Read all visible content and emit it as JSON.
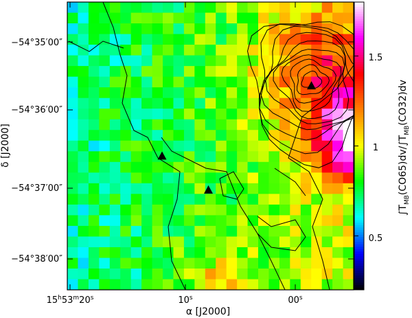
{
  "chart_data": {
    "type": "heatmap",
    "title": "",
    "xlabel": "α [J2000]",
    "ylabel": "δ [J2000]",
    "colorbar_label": "∫T_MB(CO65)dv/∫T_MB(CO32)dv",
    "colorbar_label_parts": {
      "p1": "∫T",
      "p1_sub": "MB",
      "p2": "(CO65)dv/∫T",
      "p2_sub": "MB",
      "p3": "(CO32)dv"
    },
    "colorbar_range": [
      0.2,
      1.8
    ],
    "colorbar_ticks": [
      {
        "value": 0.5,
        "label": "0.5"
      },
      {
        "value": 1.0,
        "label": "1"
      },
      {
        "value": 1.5,
        "label": "1.5"
      }
    ],
    "colormap": [
      "#000000",
      "#0000ff",
      "#00ffff",
      "#00ff00",
      "#ffff00",
      "#ff8000",
      "#ff0000",
      "#ff00ff",
      "#ffffff"
    ],
    "x_ticks": [
      {
        "label": "15h53m20s",
        "parts": {
          "a": "15",
          "b": "h",
          "c": "53",
          "d": "m",
          "e": "20",
          "f": "s"
        }
      },
      {
        "label": "10s",
        "parts": {
          "a": "10",
          "f": "s"
        }
      },
      {
        "label": "00s",
        "parts": {
          "a": "00",
          "f": "s"
        }
      }
    ],
    "y_ticks": [
      {
        "label": "−54°35′00″"
      },
      {
        "label": "−54°36′00″"
      },
      {
        "label": "−54°37′00″"
      },
      {
        "label": "−54°38′00″"
      }
    ],
    "markers": [
      {
        "name": "triangle",
        "ra_offset_s": -2.7,
        "dec_offset_arcsec": -34
      },
      {
        "name": "triangle",
        "ra_offset_s": 11.8,
        "dec_offset_arcsec": -96
      },
      {
        "name": "triangle",
        "ra_offset_s": 7.3,
        "dec_offset_arcsec": -126
      }
    ],
    "emission_peaks": [
      {
        "value": 1.7,
        "ra_offset_s": -6.5,
        "dec_offset_arcsec": -80,
        "width": 3.6
      },
      {
        "value": 1.3,
        "ra_offset_s": -3.5,
        "dec_offset_arcsec": -18,
        "width": 5.5
      },
      {
        "value": 1.2,
        "ra_offset_s": 6.0,
        "dec_offset_arcsec": -220,
        "width": 3.5
      }
    ]
  }
}
